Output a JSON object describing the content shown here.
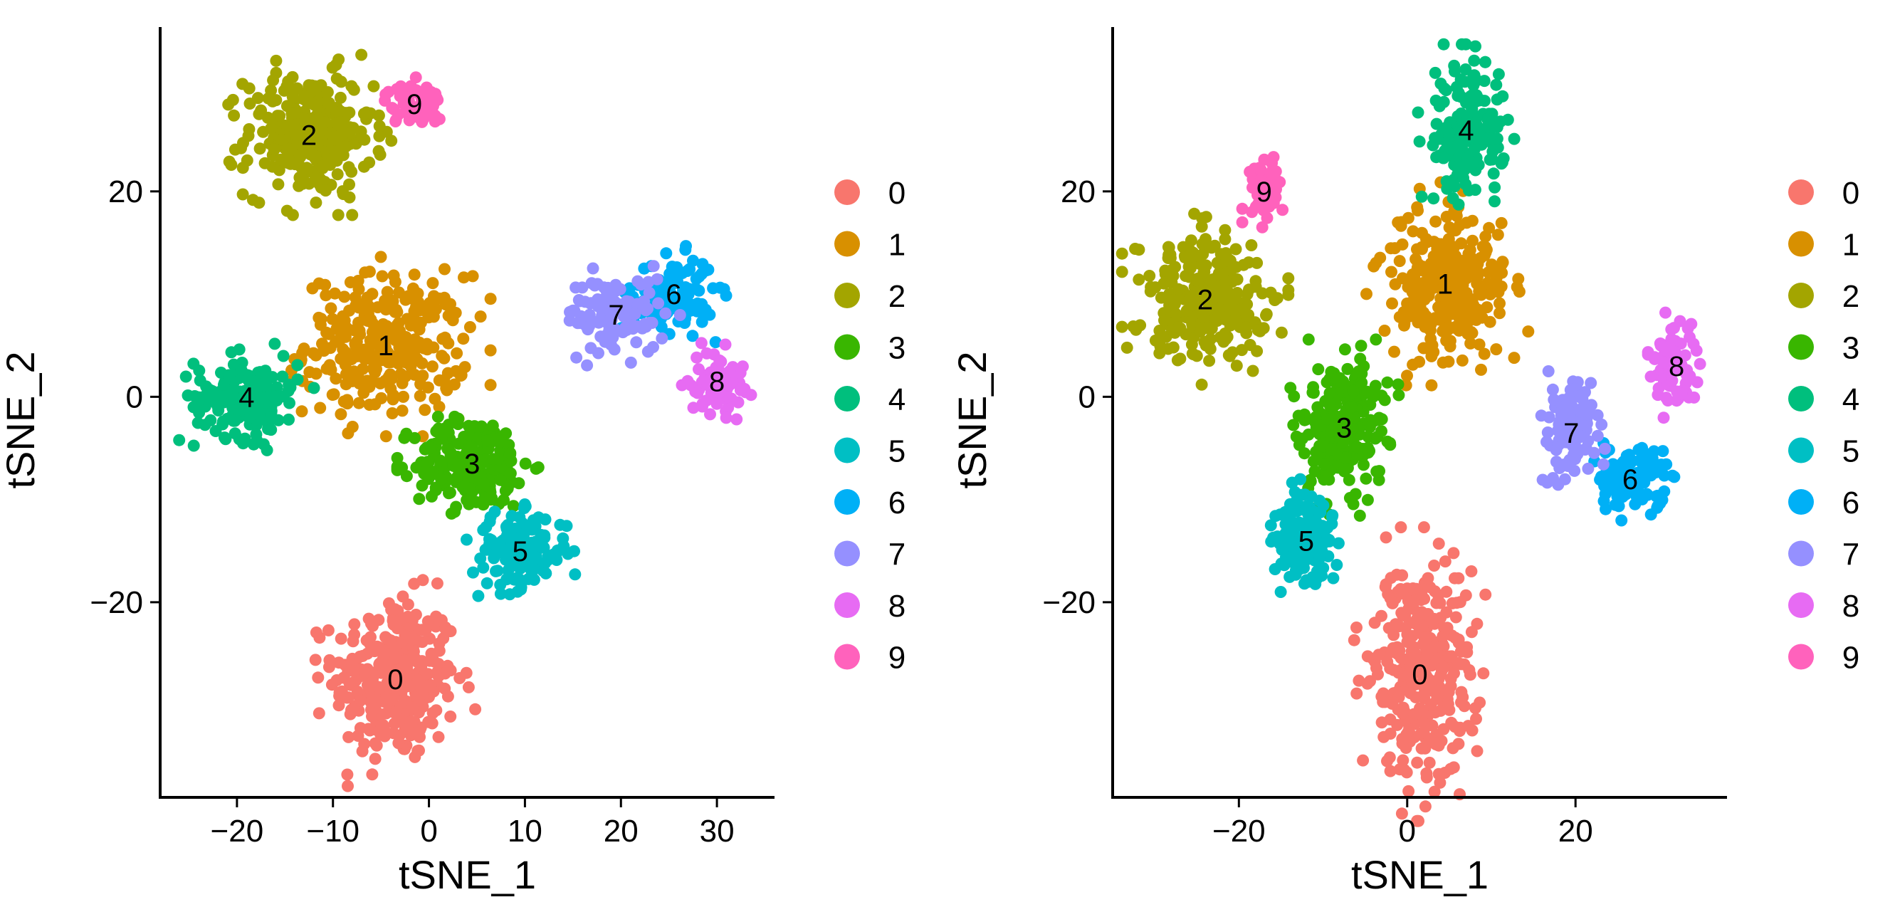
{
  "figure": {
    "title": ""
  },
  "chart_data": [
    {
      "type": "scatter",
      "title": "",
      "xlabel": "tSNE_1",
      "ylabel": "tSNE_2",
      "xlim": [
        -28,
        36
      ],
      "ylim": [
        -39,
        36
      ],
      "xticks": [
        -20,
        -10,
        0,
        10,
        20,
        30
      ],
      "xtick_labels": [
        "−20",
        "−10",
        "0",
        "10",
        "20",
        "30"
      ],
      "yticks": [
        -20,
        0,
        20
      ],
      "ytick_labels": [
        "−20",
        "0",
        "20"
      ],
      "grid": false,
      "legend_position": "right",
      "legend_labels": [
        "0",
        "1",
        "2",
        "3",
        "4",
        "5",
        "6",
        "7",
        "8",
        "9"
      ],
      "clusters": [
        {
          "label": "0",
          "color": "#F8766D",
          "cx": -3.5,
          "cy": -27.5,
          "sx": 3.2,
          "sy": 4.0,
          "n": 320
        },
        {
          "label": "1",
          "color": "#D89000",
          "cx": -4.5,
          "cy": 5.0,
          "sx": 4.2,
          "sy": 3.4,
          "n": 300
        },
        {
          "label": "2",
          "color": "#A3A500",
          "cx": -12.5,
          "cy": 25.5,
          "sx": 3.3,
          "sy": 3.0,
          "n": 280
        },
        {
          "label": "3",
          "color": "#39B600",
          "cx": 4.5,
          "cy": -6.5,
          "sx": 3.0,
          "sy": 2.2,
          "n": 230
        },
        {
          "label": "4",
          "color": "#00BF7D",
          "cx": -19.0,
          "cy": 0.0,
          "sx": 2.7,
          "sy": 2.0,
          "n": 170
        },
        {
          "label": "5",
          "color": "#00BFC4",
          "cx": 9.5,
          "cy": -15.0,
          "sx": 2.5,
          "sy": 1.8,
          "n": 140
        },
        {
          "label": "6",
          "color": "#00B0F6",
          "cx": 25.5,
          "cy": 10.0,
          "sx": 2.1,
          "sy": 1.8,
          "n": 120
        },
        {
          "label": "7",
          "color": "#9590FF",
          "cx": 19.5,
          "cy": 8.0,
          "sx": 2.6,
          "sy": 1.9,
          "n": 110
        },
        {
          "label": "8",
          "color": "#E76BF3",
          "cx": 30.0,
          "cy": 1.5,
          "sx": 1.4,
          "sy": 1.5,
          "n": 80
        },
        {
          "label": "9",
          "color": "#FF62BC",
          "cx": -1.5,
          "cy": 28.5,
          "sx": 1.5,
          "sy": 1.0,
          "n": 60
        }
      ]
    },
    {
      "type": "scatter",
      "title": "",
      "xlabel": "tSNE_1",
      "ylabel": "tSNE_2",
      "xlim": [
        -35,
        38
      ],
      "ylim": [
        -39,
        36
      ],
      "xticks": [
        -20,
        0,
        20
      ],
      "xtick_labels": [
        "−20",
        "0",
        "20"
      ],
      "yticks": [
        -20,
        0,
        20
      ],
      "ytick_labels": [
        "−20",
        "0",
        "20"
      ],
      "grid": false,
      "legend_position": "right",
      "legend_labels": [
        "0",
        "1",
        "2",
        "3",
        "4",
        "5",
        "6",
        "7",
        "8",
        "9"
      ],
      "clusters": [
        {
          "label": "0",
          "color": "#F8766D",
          "cx": 1.5,
          "cy": -27.0,
          "sx": 3.0,
          "sy": 5.5,
          "n": 320
        },
        {
          "label": "1",
          "color": "#D89000",
          "cx": 4.5,
          "cy": 11.0,
          "sx": 3.8,
          "sy": 3.8,
          "n": 300
        },
        {
          "label": "2",
          "color": "#A3A500",
          "cx": -24.0,
          "cy": 9.5,
          "sx": 3.8,
          "sy": 3.2,
          "n": 280
        },
        {
          "label": "3",
          "color": "#39B600",
          "cx": -7.5,
          "cy": -3.0,
          "sx": 2.5,
          "sy": 3.3,
          "n": 230
        },
        {
          "label": "4",
          "color": "#00BF7D",
          "cx": 7.0,
          "cy": 26.0,
          "sx": 2.2,
          "sy": 3.2,
          "n": 170
        },
        {
          "label": "5",
          "color": "#00BFC4",
          "cx": -12.0,
          "cy": -14.0,
          "sx": 1.9,
          "sy": 2.3,
          "n": 140
        },
        {
          "label": "6",
          "color": "#00B0F6",
          "cx": 26.5,
          "cy": -8.0,
          "sx": 2.5,
          "sy": 1.6,
          "n": 120
        },
        {
          "label": "7",
          "color": "#9590FF",
          "cx": 19.5,
          "cy": -3.5,
          "sx": 1.6,
          "sy": 2.6,
          "n": 110
        },
        {
          "label": "8",
          "color": "#E76BF3",
          "cx": 32.0,
          "cy": 3.0,
          "sx": 1.3,
          "sy": 2.0,
          "n": 80
        },
        {
          "label": "9",
          "color": "#FF62BC",
          "cx": -17.0,
          "cy": 20.0,
          "sx": 1.0,
          "sy": 1.5,
          "n": 60
        }
      ]
    }
  ]
}
